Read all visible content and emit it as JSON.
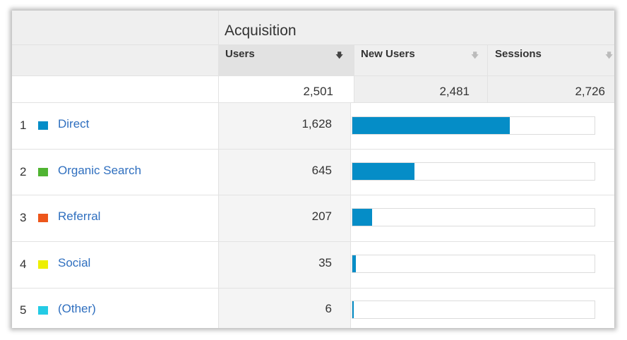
{
  "section_title": "Acquisition",
  "columns": [
    {
      "label": "Users",
      "sort_icon": "sort-descending-icon",
      "active": true
    },
    {
      "label": "New Users",
      "sort_icon": "sort-descending-icon",
      "active": false
    },
    {
      "label": "Sessions",
      "sort_icon": "sort-descending-icon",
      "active": false
    }
  ],
  "totals": {
    "users": "2,501",
    "new_users": "2,481",
    "sessions": "2,726"
  },
  "bar_color": "#058dc7",
  "rows": [
    {
      "num": "1",
      "channel": "Direct",
      "color": "#058dc7",
      "users": "1,628",
      "share": 0.651
    },
    {
      "num": "2",
      "channel": "Organic Search",
      "color": "#50b432",
      "users": "645",
      "share": 0.258
    },
    {
      "num": "3",
      "channel": "Referral",
      "color": "#ed561b",
      "users": "207",
      "share": 0.083
    },
    {
      "num": "4",
      "channel": "Social",
      "color": "#edef00",
      "users": "35",
      "share": 0.014
    },
    {
      "num": "5",
      "channel": "(Other)",
      "color": "#24cbe5",
      "users": "6",
      "share": 0.002
    }
  ]
}
